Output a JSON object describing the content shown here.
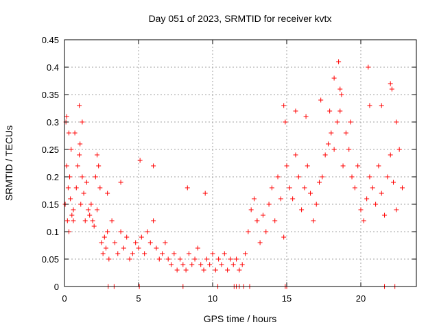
{
  "chart_data": {
    "type": "scatter",
    "title": "Day 051 of 2023, SRMTID for receiver kvtx",
    "xlabel": "GPS time / hours",
    "ylabel": "SRMTID / TECUs",
    "xlim": [
      0,
      23.75
    ],
    "ylim": [
      0,
      0.45
    ],
    "x_ticks": [
      0,
      5,
      10,
      15,
      20
    ],
    "x_tick_labels": [
      "0",
      "5",
      "10",
      "15",
      "20"
    ],
    "y_ticks": [
      0,
      0.05,
      0.1,
      0.15,
      0.2,
      0.25,
      0.3,
      0.35,
      0.4,
      0.45
    ],
    "y_tick_labels": [
      "0",
      "0.05",
      "0.1",
      "0.15",
      "0.2",
      "0.25",
      "0.3",
      "0.35",
      "0.4",
      "0.45"
    ],
    "grid": true,
    "marker": "+",
    "color": "#ff0000",
    "x": [
      0.05,
      0.1,
      0.15,
      0.2,
      0.25,
      0.3,
      0.35,
      0.4,
      0.45,
      0.5,
      0.6,
      0.7,
      0.8,
      0.9,
      1.0,
      1.1,
      1.2,
      1.3,
      1.4,
      1.5,
      1.6,
      1.7,
      1.8,
      1.9,
      2.0,
      2.1,
      2.2,
      2.3,
      2.4,
      2.5,
      2.6,
      2.7,
      2.8,
      2.9,
      3.0,
      3.2,
      3.4,
      3.6,
      3.8,
      4.0,
      4.2,
      4.4,
      4.6,
      4.8,
      5.0,
      5.2,
      5.4,
      5.6,
      5.8,
      6.0,
      6.2,
      6.4,
      6.6,
      6.8,
      7.0,
      7.2,
      7.4,
      7.6,
      7.8,
      8.0,
      8.2,
      8.4,
      8.6,
      8.8,
      9.0,
      9.2,
      9.4,
      9.6,
      9.8,
      10.0,
      10.2,
      10.4,
      10.6,
      10.8,
      11.0,
      11.2,
      11.4,
      11.6,
      11.8,
      12.0,
      12.2,
      12.4,
      12.6,
      12.8,
      13.0,
      13.2,
      13.4,
      13.6,
      13.8,
      14.0,
      14.2,
      14.4,
      14.6,
      14.8,
      15.0,
      15.2,
      15.4,
      15.6,
      15.8,
      16.0,
      16.2,
      16.4,
      16.6,
      16.8,
      17.0,
      17.2,
      17.4,
      17.6,
      17.8,
      18.0,
      18.2,
      18.4,
      18.6,
      18.8,
      19.0,
      19.2,
      19.4,
      19.6,
      19.8,
      20.0,
      20.2,
      20.4,
      20.6,
      20.8,
      21.0,
      21.2,
      21.4,
      21.6,
      21.8,
      22.0,
      22.2,
      22.4,
      22.6,
      22.8,
      0.15,
      0.3,
      0.6,
      1.0,
      1.05,
      1.2,
      2.2,
      2.9,
      3.8,
      5.1,
      6.0,
      8.3,
      9.5,
      13.0,
      14.8,
      14.9,
      15.6,
      16.3,
      17.3,
      17.9,
      18.2,
      18.5,
      18.6,
      18.7,
      19.3,
      20.5,
      20.6,
      21.4,
      22.0,
      22.1,
      22.4
    ],
    "y": [
      0.15,
      0.3,
      0.22,
      0.12,
      0.18,
      0.1,
      0.2,
      0.16,
      0.25,
      0.13,
      0.14,
      0.28,
      0.18,
      0.22,
      0.24,
      0.15,
      0.2,
      0.17,
      0.12,
      0.19,
      0.14,
      0.13,
      0.15,
      0.12,
      0.11,
      0.2,
      0.14,
      0.22,
      0.18,
      0.08,
      0.06,
      0.09,
      0.07,
      0.1,
      0.05,
      0.12,
      0.08,
      0.06,
      0.1,
      0.07,
      0.09,
      0.05,
      0.06,
      0.08,
      0.07,
      0.09,
      0.06,
      0.1,
      0.08,
      0.12,
      0.07,
      0.05,
      0.06,
      0.08,
      0.05,
      0.04,
      0.06,
      0.03,
      0.05,
      0.04,
      0.03,
      0.06,
      0.04,
      0.05,
      0.07,
      0.04,
      0.03,
      0.05,
      0.04,
      0.06,
      0.03,
      0.05,
      0.04,
      0.06,
      0.03,
      0.05,
      0.04,
      0.05,
      0.03,
      0.04,
      0.06,
      0.1,
      0.14,
      0.16,
      0.12,
      0.08,
      0.13,
      0.1,
      0.15,
      0.18,
      0.12,
      0.2,
      0.16,
      0.09,
      0.22,
      0.18,
      0.16,
      0.24,
      0.2,
      0.14,
      0.18,
      0.22,
      0.17,
      0.12,
      0.15,
      0.19,
      0.2,
      0.24,
      0.26,
      0.28,
      0.25,
      0.3,
      0.32,
      0.22,
      0.28,
      0.25,
      0.2,
      0.18,
      0.22,
      0.14,
      0.12,
      0.16,
      0.2,
      0.18,
      0.15,
      0.22,
      0.17,
      0.13,
      0.2,
      0.24,
      0.19,
      0.14,
      0.25,
      0.18,
      0.31,
      0.28,
      0.12,
      0.33,
      0.26,
      0.3,
      0.24,
      0.17,
      0.19,
      0.23,
      0.22,
      0.18,
      0.17,
      0.12,
      0.33,
      0.3,
      0.32,
      0.31,
      0.34,
      0.32,
      0.38,
      0.41,
      0.36,
      0.35,
      0.3,
      0.4,
      0.33,
      0.33,
      0.37,
      0.36,
      0.3
    ],
    "zero_markers_x": [
      2.95,
      3.35,
      5.05,
      8.0,
      10.35,
      11.45,
      11.6,
      11.8,
      12.1,
      12.5,
      14.9,
      15.0,
      21.6,
      22.3
    ]
  }
}
